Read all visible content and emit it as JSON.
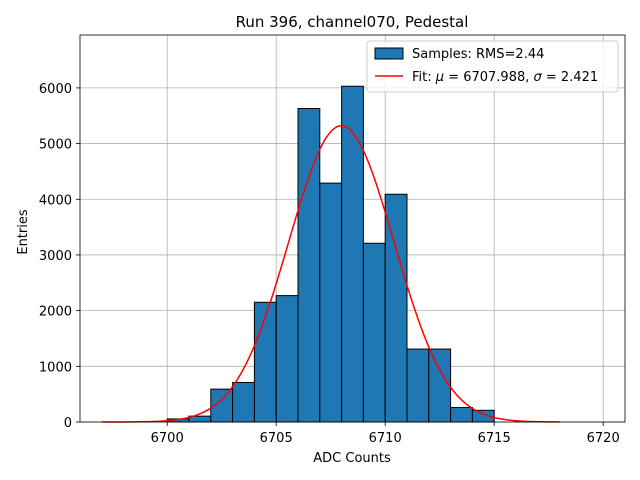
{
  "chart_data": {
    "type": "bar",
    "title": "Run 396, channel070, Pedestal",
    "xlabel": "ADC Counts",
    "ylabel": "Entries",
    "xlim": [
      6696,
      6721
    ],
    "ylim": [
      0,
      6950
    ],
    "xticks": [
      6700,
      6705,
      6710,
      6715,
      6720
    ],
    "yticks": [
      0,
      1000,
      2000,
      3000,
      4000,
      5000,
      6000
    ],
    "grid": true,
    "legend_position": "top-right",
    "bin_width": 1,
    "bins": [
      {
        "x": 6700,
        "count": 55
      },
      {
        "x": 6701,
        "count": 105
      },
      {
        "x": 6702,
        "count": 590
      },
      {
        "x": 6703,
        "count": 710
      },
      {
        "x": 6704,
        "count": 2150
      },
      {
        "x": 6705,
        "count": 2270
      },
      {
        "x": 6706,
        "count": 5630
      },
      {
        "x": 6707,
        "count": 4290
      },
      {
        "x": 6708,
        "count": 6030
      },
      {
        "x": 6709,
        "count": 3210
      },
      {
        "x": 6710,
        "count": 4090
      },
      {
        "x": 6711,
        "count": 1310
      },
      {
        "x": 6712,
        "count": 1310
      },
      {
        "x": 6713,
        "count": 260
      },
      {
        "x": 6714,
        "count": 210
      }
    ],
    "histogram_color": "#1f77b4",
    "fit": {
      "mu": 6707.988,
      "sigma": 2.421,
      "amplitude": 5320,
      "x_range": [
        6697,
        6718
      ],
      "color": "#ff0000"
    },
    "legend": [
      {
        "label": "Samples: RMS=2.44",
        "kind": "patch",
        "color": "#1f77b4"
      },
      {
        "label_prefix": "Fit: ",
        "label_mu": "μ",
        "label_mid": " = 6707.988, ",
        "label_sigma": "σ",
        "label_end": " = 2.421",
        "kind": "line",
        "color": "#ff0000"
      }
    ]
  }
}
